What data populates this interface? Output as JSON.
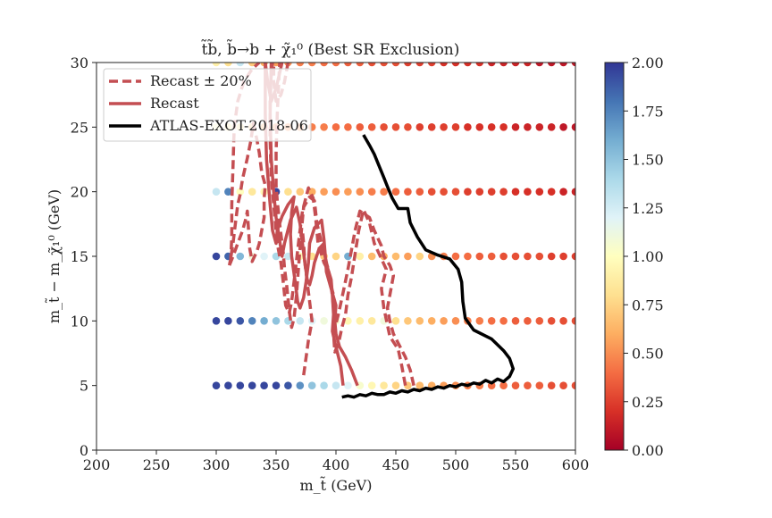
{
  "chart_data": {
    "type": "scatter",
    "title": "t̃b̃, b̃→b + χ̃₁⁰ (Best SR Exclusion)",
    "xlabel": "m_t̃ (GeV)",
    "ylabel": "m_t̃ − m_χ̃₁⁰ (GeV)",
    "xlim": [
      200,
      600
    ],
    "ylim": [
      0,
      30
    ],
    "xticks": [
      "200",
      "250",
      "300",
      "350",
      "400",
      "450",
      "500",
      "550",
      "600"
    ],
    "yticks": [
      "0",
      "5",
      "10",
      "15",
      "20",
      "25",
      "30"
    ],
    "colorbar": {
      "range": [
        0,
        2
      ],
      "ticks": [
        "0.00",
        "0.25",
        "0.50",
        "0.75",
        "1.00",
        "1.25",
        "1.50",
        "1.75",
        "2.00"
      ],
      "colormap": "RdYlBu"
    },
    "legend_position": "upper-left",
    "legend": [
      {
        "label": "Recast ± 20%",
        "style": "dashed",
        "color": "#c44e52"
      },
      {
        "label": "Recast",
        "style": "solid",
        "color": "#c44e52"
      },
      {
        "label": "ATLAS-EXOT-2018-06",
        "style": "solid",
        "color": "#000000"
      }
    ],
    "points": [
      {
        "y": 5,
        "x_start": 300,
        "x_step": 10,
        "values": [
          1.95,
          1.95,
          1.95,
          1.95,
          1.95,
          1.95,
          1.9,
          1.7,
          1.5,
          1.4,
          1.3,
          1.2,
          1.05,
          0.95,
          0.85,
          0.75,
          0.7,
          0.65,
          0.6,
          0.55,
          0.5,
          0.45,
          0.45,
          0.4,
          0.4,
          0.35,
          0.35,
          0.35,
          0.3,
          0.3,
          0.3
        ]
      },
      {
        "y": 10,
        "x_start": 300,
        "x_step": 10,
        "values": [
          1.95,
          1.95,
          1.9,
          1.75,
          1.6,
          1.5,
          1.4,
          1.3,
          1.2,
          1.1,
          1.05,
          0.95,
          0.9,
          0.85,
          1.1,
          0.8,
          0.7,
          0.65,
          0.6,
          0.55,
          0.5,
          0.45,
          0.45,
          0.4,
          0.4,
          0.35,
          0.35,
          0.35,
          0.3,
          0.3,
          0.3
        ]
      },
      {
        "y": 15,
        "x_start": 300,
        "x_step": 10,
        "values": [
          1.95,
          1.85,
          1.55,
          1.1,
          1.2,
          1.4,
          1.3,
          0.95,
          0.8,
          0.7,
          0.75,
          1.6,
          0.9,
          0.65,
          0.6,
          0.65,
          0.55,
          0.75,
          0.5,
          0.45,
          0.4,
          0.4,
          0.35,
          0.35,
          0.3,
          0.3,
          0.3,
          0.3,
          0.25,
          0.25,
          0.25
        ]
      },
      {
        "y": 20,
        "x_start": 300,
        "x_step": 10,
        "values": [
          1.3,
          1.75,
          1.0,
          0.85,
          0.95,
          1.95,
          0.8,
          0.7,
          0.6,
          0.55,
          0.5,
          0.55,
          0.5,
          0.45,
          0.45,
          0.4,
          0.35,
          0.35,
          0.3,
          0.3,
          0.3,
          0.25,
          0.25,
          0.25,
          0.25,
          0.2,
          0.2,
          0.2,
          0.2,
          0.15,
          0.15
        ]
      },
      {
        "y": 25,
        "x_start": 300,
        "x_step": 10,
        "values": [
          1.0,
          0.85,
          0.8,
          0.7,
          0.6,
          0.55,
          0.5,
          0.5,
          0.45,
          0.45,
          0.4,
          0.4,
          0.35,
          0.35,
          0.3,
          0.3,
          0.3,
          0.25,
          0.25,
          0.25,
          0.25,
          0.2,
          0.2,
          0.2,
          0.2,
          0.15,
          0.15,
          0.15,
          0.15,
          0.1,
          0.1
        ]
      },
      {
        "y": 30,
        "x_start": 300,
        "x_step": 10,
        "values": [
          0.9,
          0.8,
          1.3,
          0.7,
          0.6,
          0.55,
          0.5,
          0.45,
          0.45,
          0.4,
          0.4,
          0.35,
          0.35,
          0.3,
          0.3,
          0.3,
          0.25,
          0.25,
          0.25,
          0.2,
          0.2,
          0.2,
          0.2,
          0.15,
          0.15,
          0.15,
          0.15,
          0.1,
          0.1,
          0.1,
          0.1
        ]
      }
    ],
    "curves": {
      "atlas": [
        [
          405,
          4.1
        ],
        [
          410,
          4.2
        ],
        [
          415,
          4.1
        ],
        [
          420,
          4.3
        ],
        [
          425,
          4.2
        ],
        [
          430,
          4.4
        ],
        [
          435,
          4.3
        ],
        [
          440,
          4.3
        ],
        [
          445,
          4.5
        ],
        [
          450,
          4.4
        ],
        [
          455,
          4.6
        ],
        [
          460,
          4.5
        ],
        [
          465,
          4.7
        ],
        [
          470,
          4.6
        ],
        [
          475,
          4.8
        ],
        [
          480,
          4.7
        ],
        [
          485,
          4.9
        ],
        [
          490,
          4.8
        ],
        [
          495,
          5.0
        ],
        [
          500,
          4.9
        ],
        [
          505,
          5.1
        ],
        [
          510,
          5.0
        ],
        [
          515,
          5.2
        ],
        [
          520,
          5.1
        ],
        [
          525,
          5.4
        ],
        [
          530,
          5.2
        ],
        [
          535,
          5.5
        ],
        [
          540,
          5.3
        ],
        [
          545,
          5.7
        ],
        [
          548,
          6.3
        ],
        [
          545,
          7.1
        ],
        [
          540,
          7.7
        ],
        [
          530,
          8.6
        ],
        [
          515,
          9.3
        ],
        [
          508,
          10.2
        ],
        [
          506,
          11.5
        ],
        [
          505,
          13.0
        ],
        [
          502,
          14.0
        ],
        [
          495,
          14.8
        ],
        [
          485,
          15.1
        ],
        [
          475,
          15.5
        ],
        [
          468,
          16.5
        ],
        [
          462,
          17.6
        ],
        [
          460,
          18.7
        ],
        [
          452,
          18.7
        ],
        [
          447,
          19.5
        ],
        [
          443,
          20.4
        ],
        [
          440,
          21.1
        ],
        [
          436,
          22.0
        ],
        [
          432,
          22.9
        ],
        [
          428,
          23.6
        ],
        [
          423,
          24.4
        ]
      ],
      "recast": [
        [
          [
            418,
            5.0
          ],
          [
            413,
            6.2
          ],
          [
            408,
            7.2
          ],
          [
            403,
            8.0
          ],
          [
            400,
            9.0
          ],
          [
            399,
            10.0
          ],
          [
            400,
            11.2
          ],
          [
            396,
            12.5
          ],
          [
            392,
            13.8
          ],
          [
            391,
            15.2
          ],
          [
            390,
            16.3
          ],
          [
            388,
            17.8
          ],
          [
            382,
            17.2
          ],
          [
            378,
            16.0
          ],
          [
            377,
            14.5
          ],
          [
            375,
            13.0
          ],
          [
            373,
            11.8
          ],
          [
            370,
            11.0
          ],
          [
            368,
            11.5
          ],
          [
            366,
            13.0
          ],
          [
            363,
            15.0
          ],
          [
            362,
            16.7
          ],
          [
            363,
            18.4
          ],
          [
            365,
            19.6
          ],
          [
            360,
            19.0
          ],
          [
            355,
            18.1
          ],
          [
            351,
            17.0
          ],
          [
            350,
            16.0
          ],
          [
            347,
            17.0
          ],
          [
            345,
            19.0
          ],
          [
            342,
            22.5
          ],
          [
            341,
            26.0
          ],
          [
            341,
            30
          ]
        ],
        [
          [
            406,
            5.0
          ],
          [
            404,
            6.5
          ],
          [
            400,
            8.0
          ],
          [
            397,
            9.2
          ],
          [
            398,
            10.5
          ],
          [
            397,
            12.0
          ],
          [
            396,
            13.2
          ],
          [
            393,
            14.1
          ],
          [
            391,
            15.0
          ],
          [
            390,
            16.0
          ],
          [
            386,
            15.6
          ],
          [
            382,
            14.5
          ],
          [
            380,
            13.5
          ],
          [
            378,
            12.8
          ],
          [
            376,
            13.2
          ],
          [
            374,
            14.5
          ],
          [
            372,
            16.0
          ],
          [
            370,
            17.5
          ],
          [
            367,
            18.8
          ],
          [
            362,
            17.8
          ],
          [
            357,
            16.0
          ],
          [
            355,
            15.0
          ],
          [
            353,
            16.2
          ],
          [
            350,
            18.0
          ],
          [
            348,
            20.0
          ],
          [
            346,
            22.5
          ],
          [
            345,
            26.0
          ],
          [
            346,
            30
          ]
        ],
        [
          [
            355,
            30.0
          ],
          [
            350,
            28.0
          ],
          [
            346,
            27.0
          ],
          [
            343,
            28.5
          ],
          [
            341,
            30
          ]
        ]
      ],
      "recast_pm20": [
        [
          [
            458,
            5.0
          ],
          [
            455,
            6.5
          ],
          [
            452,
            7.8
          ],
          [
            445,
            8.8
          ],
          [
            440,
            11.0
          ],
          [
            438,
            12.5
          ],
          [
            442,
            14.0
          ],
          [
            437,
            15.0
          ],
          [
            432,
            16.0
          ],
          [
            428,
            17.6
          ],
          [
            423,
            18.6
          ],
          [
            419,
            17.0
          ],
          [
            415,
            14.6
          ],
          [
            413,
            13.4
          ],
          [
            410,
            12.0
          ],
          [
            408,
            10.5
          ],
          [
            405,
            9.5
          ],
          [
            402,
            8.2
          ],
          [
            399,
            7.6
          ],
          [
            398,
            9.0
          ],
          [
            399,
            10.3
          ],
          [
            398,
            12.0
          ],
          [
            395,
            13.0
          ],
          [
            393,
            14.2
          ],
          [
            390,
            15.0
          ],
          [
            387,
            16.4
          ],
          [
            384,
            17.6
          ],
          [
            382,
            19.3
          ],
          [
            378,
            19.6
          ],
          [
            373,
            18.8
          ],
          [
            371,
            16.8
          ],
          [
            369,
            14.5
          ],
          [
            367,
            12.0
          ],
          [
            365,
            10.2
          ],
          [
            363,
            9.5
          ],
          [
            361,
            10.8
          ],
          [
            359,
            12.6
          ],
          [
            357,
            14.1
          ],
          [
            356,
            15.3
          ],
          [
            355,
            16.0
          ],
          [
            353,
            17.5
          ],
          [
            351,
            19.3
          ],
          [
            350,
            20.5
          ],
          [
            350,
            23.0
          ],
          [
            351,
            26.0
          ],
          [
            353,
            30.0
          ]
        ],
        [
          [
            465,
            5.0
          ],
          [
            462,
            6.2
          ],
          [
            458,
            7.2
          ],
          [
            453,
            8.1
          ],
          [
            448,
            9.0
          ],
          [
            445,
            10.0
          ],
          [
            443,
            11.0
          ],
          [
            445,
            12.0
          ],
          [
            448,
            13.5
          ],
          [
            445,
            14.3
          ],
          [
            440,
            15.0
          ],
          [
            438,
            15.8
          ],
          [
            432,
            17.0
          ],
          [
            428,
            18.0
          ],
          [
            420,
            18.5
          ],
          [
            416,
            17.0
          ],
          [
            413,
            15.5
          ],
          [
            410,
            14.0
          ],
          [
            406,
            12.2
          ],
          [
            402,
            10.5
          ],
          [
            400,
            9.8
          ],
          [
            398,
            11.0
          ],
          [
            396,
            12.8
          ],
          [
            394,
            13.8
          ],
          [
            390,
            14.5
          ],
          [
            385,
            16.0
          ],
          [
            383,
            18.0
          ],
          [
            381,
            19.5
          ],
          [
            377,
            20.3
          ],
          [
            372,
            18.5
          ],
          [
            369,
            16.3
          ],
          [
            366,
            13.8
          ],
          [
            363,
            11.5
          ],
          [
            361,
            10.6
          ],
          [
            358,
            11.2
          ],
          [
            356,
            13.0
          ],
          [
            354,
            14.5
          ],
          [
            353,
            15.0
          ],
          [
            351,
            16.0
          ],
          [
            350,
            17.0
          ],
          [
            348,
            19.0
          ],
          [
            346,
            21.0
          ],
          [
            345,
            24.0
          ],
          [
            345,
            28.0
          ],
          [
            347,
            30.0
          ]
        ],
        [
          [
            373,
            5.8
          ],
          [
            377,
            8.5
          ],
          [
            380,
            10.0
          ],
          [
            378,
            11.5
          ],
          [
            376,
            13.0
          ],
          [
            374,
            14.5
          ],
          [
            373,
            16.0
          ],
          [
            372,
            17.0
          ]
        ],
        [
          [
            311,
            14.3
          ],
          [
            314,
            15.0
          ],
          [
            318,
            16.0
          ],
          [
            322,
            17.0
          ],
          [
            325,
            18.0
          ],
          [
            326,
            18.5
          ],
          [
            327,
            17.0
          ],
          [
            328,
            15.6
          ],
          [
            330,
            14.6
          ],
          [
            334,
            15.4
          ],
          [
            336,
            16.0
          ],
          [
            338,
            17.0
          ],
          [
            340,
            18.0
          ],
          [
            340,
            19.5
          ],
          [
            341,
            20.5
          ],
          [
            338,
            21.5
          ],
          [
            336,
            23.0
          ],
          [
            334,
            24.0
          ],
          [
            331,
            25.3
          ],
          [
            329,
            24.0
          ],
          [
            326,
            22.6
          ],
          [
            322,
            21.0
          ],
          [
            320,
            19.8
          ],
          [
            318,
            19.0
          ],
          [
            316,
            17.5
          ],
          [
            314,
            16.0
          ],
          [
            312,
            14.8
          ],
          [
            311,
            14.3
          ]
        ],
        [
          [
            312,
            14.5
          ],
          [
            313,
            16.5
          ],
          [
            313,
            19.0
          ],
          [
            314,
            22.0
          ],
          [
            315,
            25.0
          ],
          [
            318,
            27.0
          ],
          [
            323,
            28.5
          ],
          [
            330,
            29.5
          ],
          [
            336,
            30.0
          ]
        ],
        [
          [
            360,
            30.0
          ],
          [
            357,
            28.5
          ],
          [
            354,
            27.5
          ],
          [
            350,
            27.0
          ],
          [
            348,
            28.5
          ],
          [
            348,
            30.0
          ]
        ]
      ]
    }
  }
}
